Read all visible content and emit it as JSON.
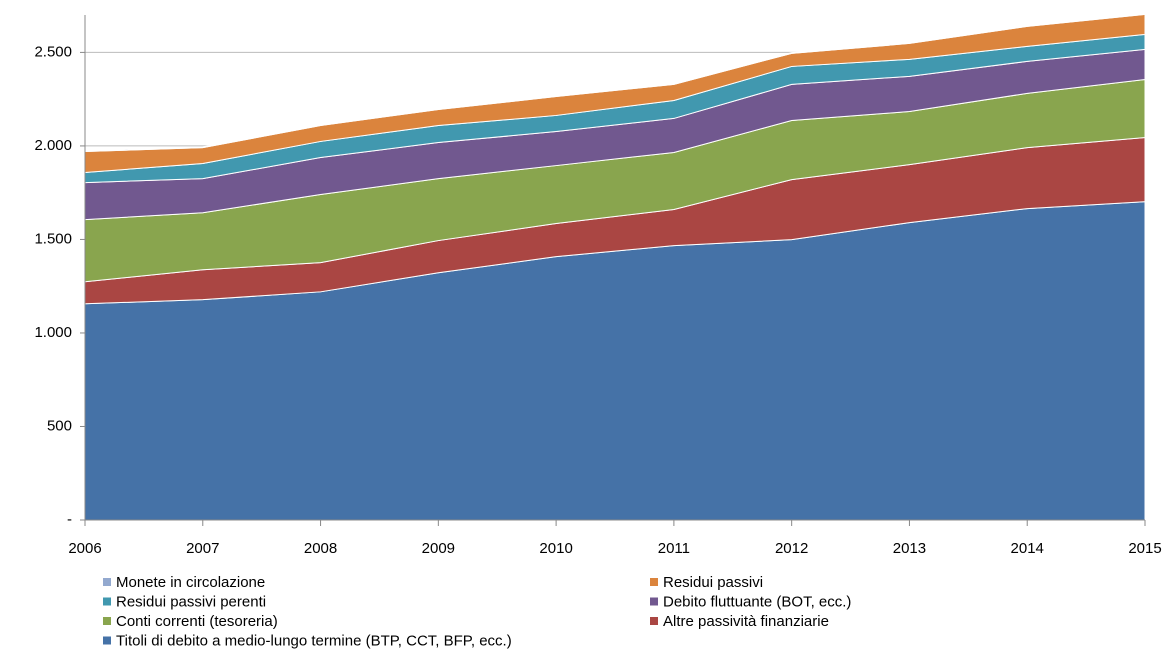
{
  "chart_data": {
    "type": "stacked_area",
    "x": [
      2006,
      2007,
      2008,
      2009,
      2010,
      2011,
      2012,
      2013,
      2014,
      2015
    ],
    "xlim": [
      2006,
      2015
    ],
    "xticks": [
      2006,
      2007,
      2008,
      2009,
      2010,
      2011,
      2012,
      2013,
      2014,
      2015
    ],
    "ylim": [
      0,
      2700
    ],
    "yticks": [
      {
        "value": 0,
        "label": "-"
      },
      500,
      {
        "value": 1000,
        "label": "1.000"
      },
      {
        "value": 1500,
        "label": "1.500"
      },
      {
        "value": 2000,
        "label": "2.000"
      },
      {
        "value": 2500,
        "label": "2.500"
      }
    ],
    "grid": true,
    "legend": "bottom",
    "series": [
      {
        "name": "Monete in circolazione",
        "color": "#93a9cf",
        "values": [
          4,
          4,
          4,
          4,
          4,
          4,
          4,
          4,
          4,
          4
        ]
      },
      {
        "name": "Residui passivi",
        "color": "#db843d",
        "values": [
          112,
          85,
          85,
          86,
          101,
          86,
          70,
          85,
          107,
          107
        ]
      },
      {
        "name": "Residui passivi perenti",
        "color": "#4198af",
        "values": [
          54,
          81,
          86,
          91,
          86,
          96,
          96,
          91,
          80,
          80
        ]
      },
      {
        "name": "Debito fluttuante (BOT, ecc.)",
        "color": "#71588f",
        "values": [
          198,
          182,
          198,
          193,
          182,
          182,
          193,
          188,
          171,
          161
        ]
      },
      {
        "name": "Conti correnti (tesoreria)",
        "color": "#89a54e",
        "values": [
          332,
          305,
          364,
          331,
          310,
          305,
          316,
          284,
          290,
          310
        ]
      },
      {
        "name": "Altre passività finanziarie",
        "color": "#aa4643",
        "values": [
          118,
          160,
          156,
          172,
          177,
          193,
          321,
          310,
          326,
          343
        ]
      },
      {
        "name": "Titoli di debito a medio-lungo termine (BTP, CCT, BFP, ecc.)",
        "color": "#4572a7",
        "values": [
          1156,
          1178,
          1220,
          1322,
          1408,
          1467,
          1499,
          1590,
          1665,
          1702
        ]
      }
    ]
  }
}
